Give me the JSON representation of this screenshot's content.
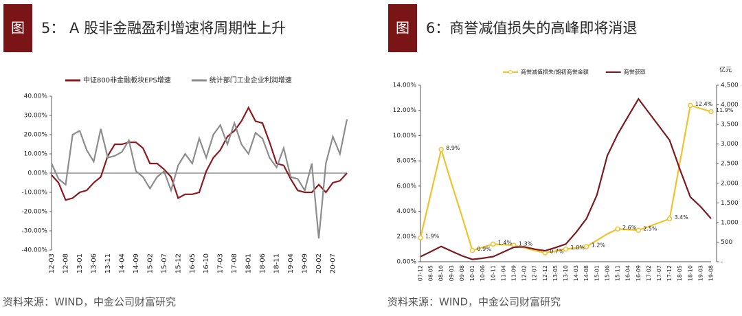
{
  "chart_data": [
    {
      "type": "line",
      "figure_label": "图",
      "title": "5： A 股非金融盈利增速将周期性上升",
      "source": "资料来源：WIND，中金公司财富研究",
      "categories": [
        "12-03",
        null,
        "12-08",
        null,
        "13-01",
        null,
        "13-06",
        null,
        "13-11",
        null,
        "14-04",
        null,
        "14-09",
        null,
        "15-02",
        null,
        "15-07",
        null,
        "15-12",
        null,
        "16-05",
        null,
        "16-10",
        null,
        "17-03",
        null,
        "17-08",
        null,
        "18-01",
        null,
        "18-06",
        null,
        "18-11",
        null,
        "19-04",
        null,
        "19-09",
        null,
        "20-02",
        null,
        "20-07",
        null,
        null
      ],
      "series": [
        {
          "name": "中证800非金融板块EPS增速",
          "color": "#8b1a1e",
          "axis": "y",
          "values": [
            -1,
            -5,
            -14,
            -13,
            -10,
            -9,
            -5,
            -2,
            9,
            15,
            15,
            16,
            16,
            13,
            5,
            5,
            2,
            -2,
            -13,
            -11,
            -11,
            -10,
            1,
            8,
            12,
            19,
            22,
            27,
            34,
            27,
            26,
            16,
            5,
            4,
            -3,
            -9,
            -10,
            -10,
            -6,
            -10,
            -5,
            -4,
            0
          ]
        },
        {
          "name": "统计部门工业企业利润增速",
          "color": "#8c8c8c",
          "axis": "y",
          "values": [
            5,
            -3,
            -6,
            20,
            22,
            12,
            6,
            23,
            8,
            9,
            11,
            17,
            1,
            -2,
            -8,
            -2,
            1,
            -9,
            4,
            10,
            5,
            18,
            8,
            20,
            25,
            15,
            26,
            15,
            10,
            21,
            18,
            8,
            3,
            13,
            -2,
            -3,
            -9,
            5,
            -34,
            5,
            19,
            10,
            28
          ]
        }
      ],
      "ylim": [
        -40,
        40
      ],
      "yticks": [
        {
          "value": -40,
          "label": "-40.00%"
        },
        {
          "value": -30,
          "label": "-30.00%"
        },
        {
          "value": -20,
          "label": "-20.00%"
        },
        {
          "value": -10,
          "label": "-10.00%"
        },
        {
          "value": 0,
          "label": "0.00%"
        },
        {
          "value": 10,
          "label": "10.00%"
        },
        {
          "value": 20,
          "label": "20.00%"
        },
        {
          "value": 30,
          "label": "30.00%"
        },
        {
          "value": 40,
          "label": "40.00%"
        }
      ],
      "grid": false
    },
    {
      "type": "line",
      "figure_label": "图",
      "title": "6：商誉减值损失的高峰即将消退",
      "source": "资料来源：WIND，中金公司财富研究",
      "y2_unit": "亿元",
      "categories": [
        "07-12",
        "08-05",
        "08-10",
        "09-03",
        "09-08",
        "10-01",
        "10-06",
        "10-11",
        "11-04",
        "11-09",
        "12-02",
        "12-07",
        "12-12",
        "13-05",
        "13-10",
        "14-03",
        "14-08",
        "15-01",
        "15-06",
        "15-11",
        "16-04",
        "16-09",
        "17-02",
        "17-07",
        "17-12",
        "18-05",
        "18-10",
        "19-03",
        "19-08"
      ],
      "series": [
        {
          "name": "商誉减值损失/期初商誉金额",
          "color": "#f2c12e",
          "axis": "y",
          "marker": true,
          "values": [
            1.9,
            5.4,
            8.9,
            6.2,
            3.6,
            0.9,
            1.15,
            1.4,
            1.35,
            1.3,
            1.1,
            0.9,
            0.7,
            0.85,
            1.0,
            1.1,
            1.2,
            1.7,
            2.2,
            2.6,
            2.55,
            2.5,
            2.8,
            3.1,
            3.4,
            7.9,
            12.4,
            12.15,
            11.9
          ],
          "value_labels": [
            "1.9%",
            null,
            "8.9%",
            null,
            null,
            "0.9%",
            null,
            "1.4%",
            null,
            "1.3%",
            null,
            null,
            "0.7%",
            null,
            "1.0%",
            null,
            "1.2%",
            null,
            null,
            "2.6%",
            null,
            "2.5%",
            null,
            null,
            "3.4%",
            null,
            "12.4%",
            null,
            "11.9%"
          ]
        },
        {
          "name": "商誉获取",
          "color": "#7b1a1e",
          "axis": "y2",
          "values": [
            130,
            260,
            390,
            270,
            150,
            60,
            90,
            130,
            250,
            370,
            380,
            320,
            280,
            360,
            450,
            750,
            1100,
            1700,
            2700,
            3250,
            3700,
            4150,
            3800,
            3450,
            3100,
            2350,
            1650,
            1400,
            1100
          ]
        }
      ],
      "ylim": [
        0,
        14
      ],
      "yticks": [
        {
          "value": 0,
          "label": "0.00%"
        },
        {
          "value": 2,
          "label": "2.00%"
        },
        {
          "value": 4,
          "label": "4.00%"
        },
        {
          "value": 6,
          "label": "6.00%"
        },
        {
          "value": 8,
          "label": "8.00%"
        },
        {
          "value": 10,
          "label": "10.00%"
        },
        {
          "value": 12,
          "label": "12.00%"
        },
        {
          "value": 14,
          "label": "14.00%"
        }
      ],
      "y2lim": [
        0,
        4500
      ],
      "y2ticks": [
        {
          "value": 0,
          "label": "-"
        },
        500,
        {
          "value": 1000,
          "label": "1,000"
        },
        {
          "value": 1500,
          "label": "1,500"
        },
        {
          "value": 2000,
          "label": "2,000"
        },
        {
          "value": 2500,
          "label": "2,500"
        },
        {
          "value": 3000,
          "label": "3,000"
        },
        {
          "value": 3500,
          "label": "3,500"
        },
        {
          "value": 4000,
          "label": "4,000"
        },
        {
          "value": 4500,
          "label": "4,500"
        }
      ],
      "grid": false
    }
  ]
}
